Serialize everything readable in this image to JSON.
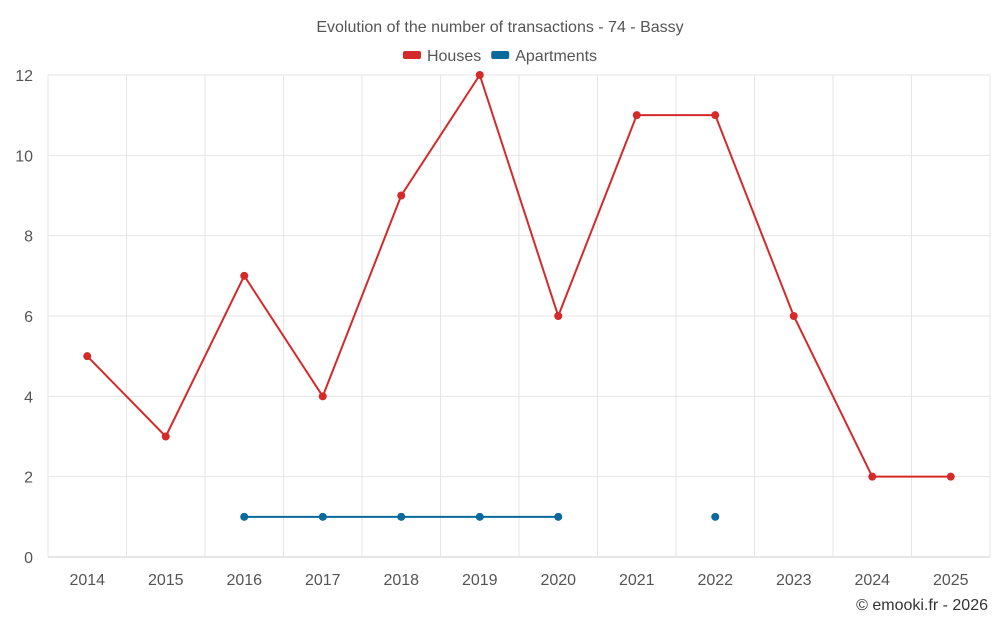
{
  "chart_data": {
    "type": "line",
    "title": "Evolution of the number of transactions - 74 - Bassy",
    "categories": [
      "2014",
      "2015",
      "2016",
      "2017",
      "2018",
      "2019",
      "2020",
      "2021",
      "2022",
      "2023",
      "2024",
      "2025"
    ],
    "ylim": [
      0,
      12
    ],
    "yticks": [
      "0",
      "2",
      "4",
      "6",
      "8",
      "10",
      "12"
    ],
    "grid": true,
    "legend_position": "top-center",
    "series": [
      {
        "name": "Houses",
        "color": "#d42a2a",
        "values": [
          5,
          3,
          7,
          4,
          9,
          12,
          6,
          11,
          11,
          6,
          2,
          2
        ]
      },
      {
        "name": "Apartments",
        "color": "#0b6a9c",
        "values": [
          null,
          null,
          1,
          1,
          1,
          1,
          1,
          null,
          1,
          null,
          null,
          null
        ]
      }
    ]
  },
  "credit": "© emooki.fr - 2026"
}
